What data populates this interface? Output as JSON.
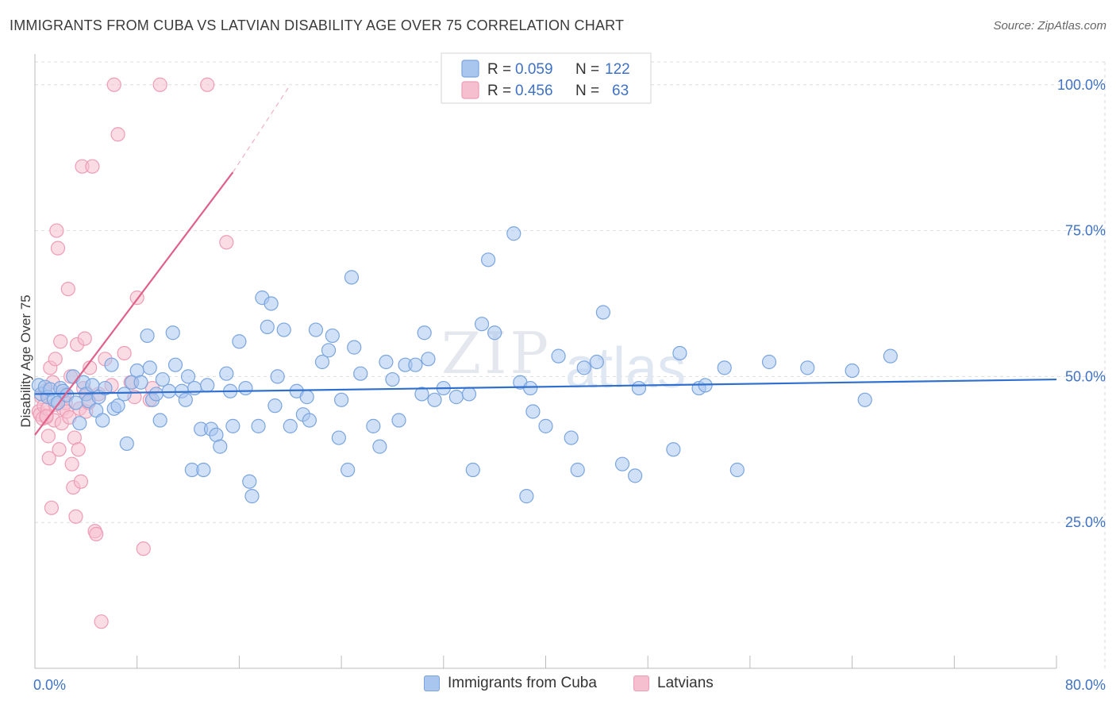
{
  "title": "IMMIGRANTS FROM CUBA VS LATVIAN DISABILITY AGE OVER 75 CORRELATION CHART",
  "source": "Source: ZipAtlas.com",
  "watermark": {
    "zip": "ZIP",
    "atlas": "atlas"
  },
  "colors": {
    "blue_fill": "#a9c6ee",
    "blue_stroke": "#7aa5df",
    "blue_line": "#2f6fce",
    "pink_fill": "#f6bfd0",
    "pink_stroke": "#ee9cb6",
    "pink_line": "#e0608a",
    "axis_text": "#3f72c4",
    "grid": "#dddddd"
  },
  "legend": {
    "blue": {
      "r_label": "R =",
      "r_value": "0.059",
      "n_label": "N =",
      "n_value": "122"
    },
    "pink": {
      "r_label": "R =",
      "r_value": "0.456",
      "n_label": "N =",
      "n_value": "63"
    }
  },
  "chart_data": {
    "type": "scatter",
    "title": "IMMIGRANTS FROM CUBA VS LATVIAN DISABILITY AGE OVER 75 CORRELATION CHART",
    "xlabel": "",
    "ylabel": "Disability Age Over 75",
    "xlim": [
      0,
      80
    ],
    "ylim": [
      0,
      105
    ],
    "x_tick_labels": [
      "0.0%",
      "80.0%"
    ],
    "y_ticks": [
      25,
      50,
      75,
      100
    ],
    "y_tick_labels": [
      "25.0%",
      "50.0%",
      "75.0%",
      "100.0%"
    ],
    "series": [
      {
        "name": "Immigrants from Cuba",
        "color": "blue",
        "trend": {
          "x0": 0,
          "y0": 47.0,
          "x1": 80,
          "y1": 49.5,
          "dashed_to": null
        },
        "points": [
          [
            0.3,
            48.5
          ],
          [
            0.5,
            47.0
          ],
          [
            0.8,
            48.2
          ],
          [
            1.0,
            46.5
          ],
          [
            1.2,
            47.8
          ],
          [
            1.5,
            46.0
          ],
          [
            1.8,
            45.5
          ],
          [
            2.0,
            48.0
          ],
          [
            2.2,
            47.5
          ],
          [
            2.5,
            46.8
          ],
          [
            3.0,
            50.0
          ],
          [
            3.2,
            45.5
          ],
          [
            3.5,
            42.0
          ],
          [
            3.8,
            49.0
          ],
          [
            4.0,
            47.0
          ],
          [
            4.2,
            45.8
          ],
          [
            4.5,
            48.5
          ],
          [
            4.8,
            44.2
          ],
          [
            5.0,
            46.5
          ],
          [
            5.3,
            42.5
          ],
          [
            5.5,
            48.0
          ],
          [
            6.0,
            52.0
          ],
          [
            6.2,
            44.5
          ],
          [
            6.5,
            45.0
          ],
          [
            7.0,
            47.0
          ],
          [
            7.2,
            38.5
          ],
          [
            7.6,
            49.0
          ],
          [
            8.0,
            51.0
          ],
          [
            8.3,
            49.0
          ],
          [
            8.8,
            57.0
          ],
          [
            9.0,
            51.5
          ],
          [
            9.2,
            46.0
          ],
          [
            9.5,
            47.0
          ],
          [
            9.8,
            42.5
          ],
          [
            10.0,
            49.5
          ],
          [
            10.5,
            47.5
          ],
          [
            10.8,
            57.5
          ],
          [
            11.0,
            52.0
          ],
          [
            11.5,
            47.5
          ],
          [
            11.8,
            46.0
          ],
          [
            12.0,
            50.0
          ],
          [
            12.3,
            34.0
          ],
          [
            12.5,
            48.0
          ],
          [
            13.0,
            41.0
          ],
          [
            13.2,
            34.0
          ],
          [
            13.5,
            48.5
          ],
          [
            13.8,
            41.0
          ],
          [
            14.2,
            40.0
          ],
          [
            14.5,
            38.0
          ],
          [
            15.0,
            50.5
          ],
          [
            15.3,
            47.5
          ],
          [
            15.5,
            41.5
          ],
          [
            16.0,
            56.0
          ],
          [
            16.5,
            48.0
          ],
          [
            16.8,
            32.0
          ],
          [
            17.0,
            29.5
          ],
          [
            17.5,
            41.5
          ],
          [
            17.8,
            63.5
          ],
          [
            18.2,
            58.5
          ],
          [
            18.5,
            62.5
          ],
          [
            18.8,
            45.0
          ],
          [
            19.0,
            50.0
          ],
          [
            19.5,
            58.0
          ],
          [
            20.0,
            41.5
          ],
          [
            20.5,
            47.5
          ],
          [
            21.0,
            43.5
          ],
          [
            21.3,
            46.5
          ],
          [
            21.5,
            42.5
          ],
          [
            22.0,
            58.0
          ],
          [
            22.5,
            52.5
          ],
          [
            23.0,
            54.5
          ],
          [
            23.3,
            57.0
          ],
          [
            23.8,
            39.5
          ],
          [
            24.0,
            46.0
          ],
          [
            24.5,
            34.0
          ],
          [
            24.8,
            67.0
          ],
          [
            25.0,
            55.0
          ],
          [
            25.5,
            50.5
          ],
          [
            26.5,
            41.5
          ],
          [
            27.0,
            38.0
          ],
          [
            27.5,
            52.5
          ],
          [
            28.0,
            49.5
          ],
          [
            28.5,
            42.5
          ],
          [
            29.0,
            52.0
          ],
          [
            29.8,
            52.0
          ],
          [
            30.3,
            47.0
          ],
          [
            30.5,
            57.5
          ],
          [
            30.8,
            53.0
          ],
          [
            31.3,
            46.0
          ],
          [
            32.0,
            48.0
          ],
          [
            33.0,
            46.5
          ],
          [
            34.0,
            47.0
          ],
          [
            34.3,
            34.0
          ],
          [
            35.0,
            59.0
          ],
          [
            35.5,
            70.0
          ],
          [
            36.0,
            57.5
          ],
          [
            37.5,
            74.5
          ],
          [
            38.0,
            49.0
          ],
          [
            38.5,
            29.5
          ],
          [
            38.8,
            48.0
          ],
          [
            39.0,
            44.0
          ],
          [
            40.0,
            41.5
          ],
          [
            41.0,
            53.5
          ],
          [
            42.0,
            39.5
          ],
          [
            43.0,
            51.5
          ],
          [
            42.5,
            34.0
          ],
          [
            44.0,
            52.5
          ],
          [
            44.5,
            61.0
          ],
          [
            46.0,
            35.0
          ],
          [
            47.0,
            33.0
          ],
          [
            47.3,
            48.0
          ],
          [
            50.0,
            37.5
          ],
          [
            50.5,
            54.0
          ],
          [
            52.0,
            48.0
          ],
          [
            52.5,
            48.5
          ],
          [
            54.0,
            51.5
          ],
          [
            55.0,
            34.0
          ],
          [
            57.5,
            52.5
          ],
          [
            60.5,
            51.5
          ],
          [
            64.0,
            51.0
          ],
          [
            65.0,
            46.0
          ],
          [
            67.0,
            53.5
          ]
        ]
      },
      {
        "name": "Latvians",
        "color": "pink",
        "trend": {
          "x0": 0,
          "y0": 40.0,
          "x1": 15.5,
          "y1": 85.0,
          "dashed_to": {
            "x": 20.0,
            "y": 100.0
          }
        },
        "points": [
          [
            0.3,
            44.0
          ],
          [
            0.4,
            43.5
          ],
          [
            0.5,
            46.5
          ],
          [
            0.6,
            42.8
          ],
          [
            0.7,
            45.0
          ],
          [
            0.8,
            47.5
          ],
          [
            0.9,
            43.0
          ],
          [
            1.0,
            44.5
          ],
          [
            1.1,
            36.0
          ],
          [
            1.2,
            51.5
          ],
          [
            1.3,
            27.5
          ],
          [
            1.4,
            49.0
          ],
          [
            1.5,
            42.5
          ],
          [
            1.6,
            53.0
          ],
          [
            1.7,
            75.0
          ],
          [
            1.8,
            72.0
          ],
          [
            1.9,
            37.5
          ],
          [
            2.0,
            56.0
          ],
          [
            2.1,
            42.0
          ],
          [
            2.2,
            44.5
          ],
          [
            2.3,
            47.0
          ],
          [
            2.4,
            45.5
          ],
          [
            2.5,
            44.0
          ],
          [
            2.6,
            65.0
          ],
          [
            2.7,
            43.0
          ],
          [
            2.8,
            50.0
          ],
          [
            2.9,
            35.0
          ],
          [
            3.0,
            31.0
          ],
          [
            3.1,
            39.5
          ],
          [
            3.2,
            26.0
          ],
          [
            3.3,
            55.5
          ],
          [
            3.4,
            37.5
          ],
          [
            3.5,
            44.5
          ],
          [
            3.6,
            32.0
          ],
          [
            3.7,
            86.0
          ],
          [
            3.8,
            48.0
          ],
          [
            3.9,
            56.5
          ],
          [
            4.0,
            44.0
          ],
          [
            4.1,
            47.0
          ],
          [
            4.2,
            45.5
          ],
          [
            4.3,
            51.5
          ],
          [
            4.5,
            86.0
          ],
          [
            4.7,
            23.5
          ],
          [
            4.8,
            23.0
          ],
          [
            5.0,
            47.0
          ],
          [
            5.2,
            8.0
          ],
          [
            5.5,
            53.0
          ],
          [
            6.0,
            48.5
          ],
          [
            6.2,
            100.0
          ],
          [
            6.5,
            91.5
          ],
          [
            7.0,
            54.0
          ],
          [
            7.5,
            49.0
          ],
          [
            7.8,
            46.5
          ],
          [
            8.0,
            63.5
          ],
          [
            8.5,
            20.5
          ],
          [
            9.0,
            46.0
          ],
          [
            9.2,
            48.0
          ],
          [
            9.8,
            100.0
          ],
          [
            13.5,
            100.0
          ],
          [
            15.0,
            73.0
          ],
          [
            0.9,
            43.2
          ],
          [
            1.05,
            39.8
          ],
          [
            1.6,
            45.2
          ]
        ]
      }
    ]
  },
  "bottom_legend": [
    {
      "label": "Immigrants from Cuba",
      "color": "blue"
    },
    {
      "label": "Latvians",
      "color": "pink"
    }
  ]
}
